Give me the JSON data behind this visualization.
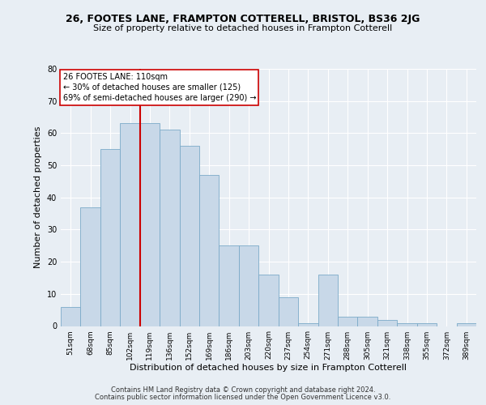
{
  "title1": "26, FOOTES LANE, FRAMPTON COTTERELL, BRISTOL, BS36 2JG",
  "title2": "Size of property relative to detached houses in Frampton Cotterell",
  "xlabel": "Distribution of detached houses by size in Frampton Cotterell",
  "ylabel": "Number of detached properties",
  "categories": [
    "51sqm",
    "68sqm",
    "85sqm",
    "102sqm",
    "119sqm",
    "136sqm",
    "152sqm",
    "169sqm",
    "186sqm",
    "203sqm",
    "220sqm",
    "237sqm",
    "254sqm",
    "271sqm",
    "288sqm",
    "305sqm",
    "321sqm",
    "338sqm",
    "355sqm",
    "372sqm",
    "389sqm"
  ],
  "values": [
    6,
    37,
    55,
    63,
    63,
    61,
    56,
    47,
    25,
    25,
    16,
    9,
    1,
    16,
    3,
    3,
    2,
    1,
    1,
    0,
    1
  ],
  "bar_color": "#c8d8e8",
  "bar_edge_color": "#7baac8",
  "vline_x": 3.5,
  "vline_color": "#cc0000",
  "annotation_title": "26 FOOTES LANE: 110sqm",
  "annotation_line1": "← 30% of detached houses are smaller (125)",
  "annotation_line2": "69% of semi-detached houses are larger (290) →",
  "annotation_box_color": "#ffffff",
  "annotation_border_color": "#cc0000",
  "ylim": [
    0,
    80
  ],
  "yticks": [
    0,
    10,
    20,
    30,
    40,
    50,
    60,
    70,
    80
  ],
  "footer1": "Contains HM Land Registry data © Crown copyright and database right 2024.",
  "footer2": "Contains public sector information licensed under the Open Government Licence v3.0.",
  "bg_color": "#e8eef4",
  "fig_color": "#e8eef4",
  "grid_color": "#ffffff",
  "title1_fontsize": 9.0,
  "title2_fontsize": 8.0,
  "ylabel_fontsize": 8.0,
  "xlabel_fontsize": 8.0,
  "tick_fontsize": 6.5,
  "footer_fontsize": 6.0
}
